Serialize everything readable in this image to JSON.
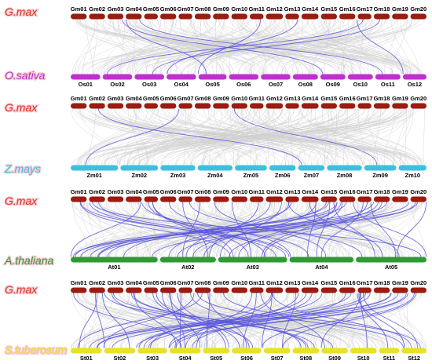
{
  "panels": [
    {
      "top_species": "G.max",
      "bottom_species": "O.sativa",
      "bottom_color": "#c02fd0",
      "top_chromosomes": [
        "Gm01",
        "Gm02",
        "Gm03",
        "Gm04",
        "Gm05",
        "Gm06",
        "Gm07",
        "Gm08",
        "Gm09",
        "Gm10",
        "Gm11",
        "Gm12",
        "Gm13",
        "Gm14",
        "Gm15",
        "Gm16",
        "Gm17",
        "Gm18",
        "Gm19",
        "Gm20"
      ],
      "bottom_chromosomes": [
        "Os01",
        "Os02",
        "Os03",
        "Os04",
        "Os05",
        "Os06",
        "Os07",
        "Os08",
        "Os09",
        "Os10",
        "Os11",
        "Os12"
      ],
      "highlight_links": 8
    },
    {
      "top_species": "G.max",
      "bottom_species": "Z.mays",
      "bottom_color": "#3cc1dd",
      "top_chromosomes": [
        "Gm01",
        "Gm02",
        "Gm03",
        "Gm04",
        "Gm05",
        "Gm06",
        "Gm07",
        "Gm08",
        "Gm09",
        "Gm10",
        "Gm11",
        "Gm12",
        "Gm13",
        "Gm14",
        "Gm15",
        "Gm16",
        "Gm17",
        "Gm18",
        "Gm19",
        "Gm20"
      ],
      "bottom_chromosomes": [
        "Zm01",
        "Zm02",
        "Zm03",
        "Zm04",
        "Zm05",
        "Zm06",
        "Zm07",
        "Zm08",
        "Zm09",
        "Zm10"
      ],
      "highlight_links": 3
    },
    {
      "top_species": "G.max",
      "bottom_species": "A.thaliana",
      "bottom_color": "#2f9a34",
      "top_chromosomes": [
        "Gm01",
        "Gm02",
        "Gm03",
        "Gm04",
        "Gm05",
        "Gm06",
        "Gm07",
        "Gm08",
        "Gm09",
        "Gm10",
        "Gm11",
        "Gm12",
        "Gm13",
        "Gm14",
        "Gm15",
        "Gm16",
        "Gm17",
        "Gm18",
        "Gm19",
        "Gm20"
      ],
      "bottom_chromosomes": [
        "At01",
        "At02",
        "At03",
        "At04",
        "At05"
      ],
      "highlight_links": 46
    },
    {
      "top_species": "G.max",
      "bottom_species": "S.tuberosum",
      "bottom_color": "#e8e227",
      "top_chromosomes": [
        "Gm01",
        "Gm02",
        "Gm03",
        "Gm04",
        "Gm05",
        "Gm06",
        "Gm07",
        "Gm08",
        "Gm09",
        "Gm10",
        "Gm11",
        "Gm12",
        "Gm13",
        "Gm14",
        "Gm15",
        "Gm16",
        "Gm17",
        "Gm18",
        "Gm19",
        "Gm20"
      ],
      "bottom_chromosomes": [
        "St01",
        "St02",
        "St03",
        "St04",
        "St05",
        "St06",
        "St07",
        "St08",
        "St09",
        "St10",
        "St11",
        "St12"
      ],
      "highlight_links": 52
    }
  ],
  "colors": {
    "gm_chromosome": "#9b1c10",
    "species_label": "#e0341c",
    "highlight_link": "#5a57dd",
    "background_link": "#cfcfcf",
    "label_glow": "#f7c9d6"
  }
}
